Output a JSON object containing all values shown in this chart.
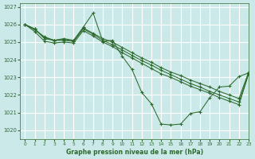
{
  "title": "Graphe pression niveau de la mer (hPa)",
  "bg_color": "#cce9e9",
  "grid_color": "#ffffff",
  "line_color": "#2d6a2d",
  "xlim": [
    -0.5,
    23
  ],
  "ylim": [
    1019.5,
    1027.2
  ],
  "yticks": [
    1020,
    1021,
    1022,
    1023,
    1024,
    1025,
    1026,
    1027
  ],
  "xticks": [
    0,
    1,
    2,
    3,
    4,
    5,
    6,
    7,
    8,
    9,
    10,
    11,
    12,
    13,
    14,
    15,
    16,
    17,
    18,
    19,
    20,
    21,
    22,
    23
  ],
  "series": [
    [
      1026.0,
      1025.7,
      1025.3,
      1025.1,
      1025.2,
      1025.1,
      1025.85,
      1026.65,
      1025.05,
      1025.1,
      1024.2,
      1023.45,
      1022.15,
      1021.5,
      1020.35,
      1020.3,
      1020.35,
      1020.95,
      1021.05,
      1021.85,
      1022.45,
      1022.5,
      1023.05,
      1023.25
    ],
    [
      1026.0,
      1025.75,
      1025.25,
      1025.1,
      1025.15,
      1025.05,
      1025.8,
      1025.5,
      1025.2,
      1025.0,
      1024.7,
      1024.4,
      1024.1,
      1023.85,
      1023.55,
      1023.3,
      1023.1,
      1022.85,
      1022.65,
      1022.45,
      1022.2,
      1022.0,
      1021.8,
      1023.3
    ],
    [
      1026.0,
      1025.75,
      1025.2,
      1025.1,
      1025.1,
      1025.05,
      1025.75,
      1025.45,
      1025.1,
      1024.85,
      1024.55,
      1024.25,
      1023.95,
      1023.7,
      1023.4,
      1023.15,
      1022.9,
      1022.65,
      1022.45,
      1022.2,
      1022.0,
      1021.8,
      1021.6,
      1023.25
    ],
    [
      1026.0,
      1025.6,
      1025.05,
      1024.95,
      1025.0,
      1024.95,
      1025.65,
      1025.35,
      1025.0,
      1024.75,
      1024.4,
      1024.1,
      1023.8,
      1023.5,
      1023.2,
      1023.0,
      1022.75,
      1022.5,
      1022.3,
      1022.1,
      1021.85,
      1021.65,
      1021.45,
      1023.2
    ]
  ]
}
